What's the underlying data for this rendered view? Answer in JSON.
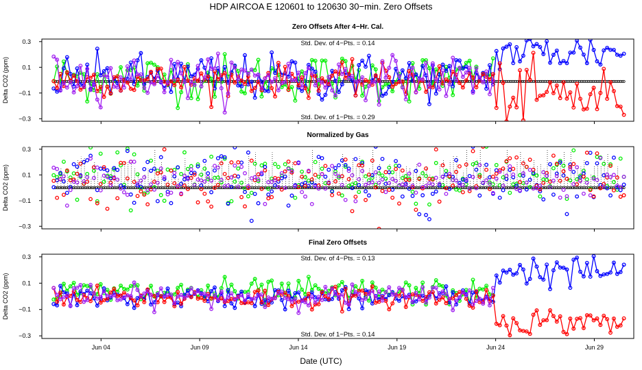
{
  "chart_data": {
    "type": "scatter",
    "title": "HDP   AIRCOA E   120601 to 120630   30−min. Zero Offsets",
    "xlabel": "Date (UTC)",
    "x_range": [
      1.0,
      31.0
    ],
    "x_ticks": [
      {
        "day": 4,
        "label": "Jun 04"
      },
      {
        "day": 9,
        "label": "Jun 09"
      },
      {
        "day": 14,
        "label": "Jun 14"
      },
      {
        "day": 19,
        "label": "Jun 19"
      },
      {
        "day": 24,
        "label": "Jun 24"
      },
      {
        "day": 29,
        "label": "Jun 29"
      }
    ],
    "series_colors": {
      "gas1": "#00ee00",
      "gas2": "#0000ff",
      "gas3": "#ff0000",
      "gas4": "#a020f0",
      "normal": "#000000"
    },
    "panels": [
      {
        "title": "Zero Offsets After 4−Hr. Cal.",
        "ylabel": "Delta CO2 (ppm)",
        "ylim": [
          -0.32,
          0.32
        ],
        "yticks": [
          -0.3,
          -0.1,
          0.1,
          0.3
        ],
        "ytick_labels": [
          "−0.3",
          "−0.1",
          "0.1",
          "0.3"
        ],
        "annotations": [
          {
            "text": "Std. Dev. of 4−Pts. =  0.14",
            "pos": "top"
          },
          {
            "text": "Std. Dev. of 1−Pts. =  0.29",
            "pos": "bottom"
          }
        ],
        "normal_line_y": -0.01,
        "series": [
          {
            "name": "gas1",
            "mean_before": 0.02,
            "spread_before": 0.09,
            "mean_after": 0.0,
            "spread_after": 0.0
          },
          {
            "name": "gas2",
            "mean_before": 0.02,
            "spread_before": 0.09,
            "mean_after": 0.22,
            "spread_after": 0.08
          },
          {
            "name": "gas3",
            "mean_before": 0.0,
            "spread_before": 0.06,
            "mean_after": -0.12,
            "spread_after": 0.12
          },
          {
            "name": "gas4",
            "mean_before": 0.02,
            "spread_before": 0.08,
            "mean_after": 0.0,
            "spread_after": 0.0
          }
        ]
      },
      {
        "title": "Normalized by Gas",
        "ylabel": "Delta CO2 (ppm)",
        "ylim": [
          -0.32,
          0.32
        ],
        "yticks": [
          -0.3,
          -0.1,
          0.1,
          0.3
        ],
        "ytick_labels": [
          "−0.3",
          "−0.1",
          "0.1",
          "0.3"
        ],
        "annotations": [],
        "normal_line_y": 0.0,
        "series": [
          {
            "name": "gas1",
            "mean_before": 0.08,
            "spread_before": 0.1,
            "mean_after": 0.08,
            "spread_after": 0.1
          },
          {
            "name": "gas2",
            "mean_before": 0.06,
            "spread_before": 0.12,
            "mean_after": 0.08,
            "spread_after": 0.1
          },
          {
            "name": "gas3",
            "mean_before": 0.06,
            "spread_before": 0.1,
            "mean_after": 0.1,
            "spread_after": 0.1
          },
          {
            "name": "gas4",
            "mean_before": 0.04,
            "spread_before": 0.08,
            "mean_after": 0.06,
            "spread_after": 0.08
          }
        ]
      },
      {
        "title": "Final Zero Offsets",
        "ylabel": "Delta CO2 (ppm)",
        "ylim": [
          -0.32,
          0.32
        ],
        "yticks": [
          -0.3,
          -0.1,
          0.1,
          0.3
        ],
        "ytick_labels": [
          "−0.3",
          "−0.1",
          "0.1",
          "0.3"
        ],
        "annotations": [
          {
            "text": "Std. Dev. of 4−Pts. =  0.13",
            "pos": "top"
          },
          {
            "text": "Std. Dev. of 1−Pts. =  0.14",
            "pos": "bottom"
          }
        ],
        "normal_line_y": null,
        "series": [
          {
            "name": "gas1",
            "mean_before": 0.03,
            "spread_before": 0.05,
            "mean_after": 0.0,
            "spread_after": 0.0
          },
          {
            "name": "gas2",
            "mean_before": -0.01,
            "spread_before": 0.04,
            "mean_after": 0.19,
            "spread_after": 0.06
          },
          {
            "name": "gas3",
            "mean_before": -0.01,
            "spread_before": 0.04,
            "mean_after": -0.19,
            "spread_after": 0.05
          },
          {
            "name": "gas4",
            "mean_before": 0.0,
            "spread_before": 0.04,
            "mean_after": 0.0,
            "spread_after": 0.0
          }
        ]
      }
    ],
    "regime_change_day": 24.0
  }
}
